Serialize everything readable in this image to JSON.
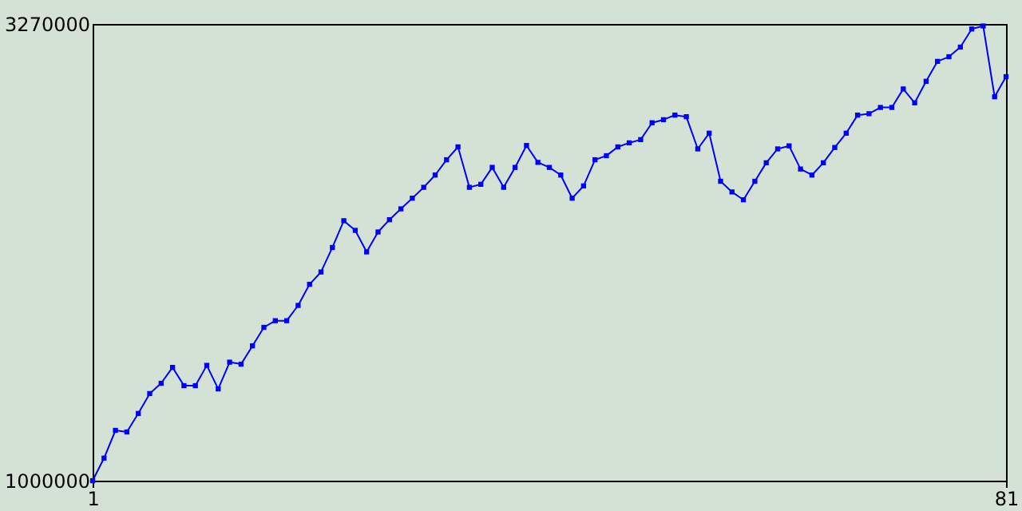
{
  "chart_data": {
    "type": "line",
    "x": [
      1,
      2,
      3,
      4,
      5,
      6,
      7,
      8,
      9,
      10,
      11,
      12,
      13,
      14,
      15,
      16,
      17,
      18,
      19,
      20,
      21,
      22,
      23,
      24,
      25,
      26,
      27,
      28,
      29,
      30,
      31,
      32,
      33,
      34,
      35,
      36,
      37,
      38,
      39,
      40,
      41,
      42,
      43,
      44,
      45,
      46,
      47,
      48,
      49,
      50,
      51,
      52,
      53,
      54,
      55,
      56,
      57,
      58,
      59,
      60,
      61,
      62,
      63,
      64,
      65,
      66,
      67,
      68,
      69,
      70,
      71,
      72,
      73,
      74,
      75,
      76,
      77,
      78,
      79,
      80,
      81
    ],
    "series": [
      {
        "color": "#0000ff",
        "values": [
          1000000,
          1112000,
          1250000,
          1242000,
          1334000,
          1433000,
          1484000,
          1563000,
          1472000,
          1472000,
          1573000,
          1456000,
          1589000,
          1579000,
          1670000,
          1762000,
          1795000,
          1795000,
          1871000,
          1976000,
          2037000,
          2159000,
          2292000,
          2244000,
          2137000,
          2236000,
          2297000,
          2351000,
          2404000,
          2458000,
          2519000,
          2595000,
          2659000,
          2458000,
          2473000,
          2557000,
          2458000,
          2557000,
          2666000,
          2582000,
          2557000,
          2519000,
          2404000,
          2465000,
          2595000,
          2615000,
          2659000,
          2679000,
          2695000,
          2779000,
          2794000,
          2817000,
          2809000,
          2649000,
          2727000,
          2488000,
          2435000,
          2396000,
          2488000,
          2580000,
          2649000,
          2664000,
          2549000,
          2519000,
          2580000,
          2656000,
          2727000,
          2817000,
          2824000,
          2855000,
          2855000,
          2947000,
          2878000,
          2985000,
          3084000,
          3107000,
          3155000,
          3245000,
          3260000,
          2908000,
          3008000
        ]
      }
    ],
    "xlim": [
      1,
      81
    ],
    "xticks": [
      1,
      81
    ],
    "ylim": [
      1000000,
      3270000
    ],
    "yticks": [
      1000000,
      3270000
    ],
    "grid": false,
    "legend": false,
    "marker": "square",
    "line_style": "solid"
  }
}
